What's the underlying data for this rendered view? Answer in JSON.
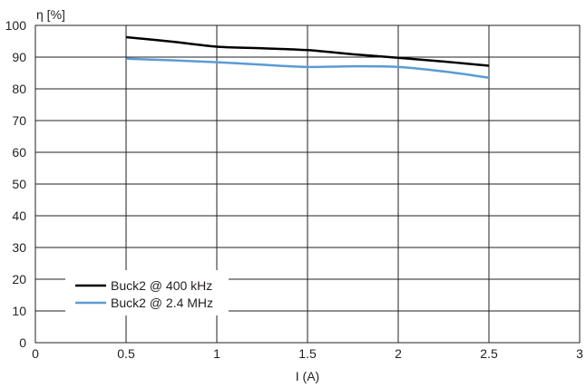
{
  "chart_data": {
    "type": "line",
    "title": "",
    "xlabel": "I (A)",
    "ylabel": "η [%]",
    "xlim": [
      0,
      3
    ],
    "ylim": [
      0,
      100
    ],
    "xticks": [
      0,
      0.5,
      1,
      1.5,
      2,
      2.5,
      3
    ],
    "xtick_labels": [
      "0",
      "0.5",
      "1",
      "1.5",
      "2",
      "2.5",
      "3"
    ],
    "yticks": [
      0,
      10,
      20,
      30,
      40,
      50,
      60,
      70,
      80,
      90,
      100
    ],
    "ytick_labels": [
      "0",
      "10",
      "20",
      "30",
      "40",
      "50",
      "60",
      "70",
      "80",
      "90",
      "100"
    ],
    "grid": true,
    "legend_position": "bottom-left",
    "series": [
      {
        "name": "Buck2 @ 400 kHz",
        "color": "#000000",
        "x": [
          0.5,
          0.75,
          1.0,
          1.25,
          1.5,
          1.75,
          2.0,
          2.25,
          2.5
        ],
        "y": [
          96.3,
          94.9,
          93.3,
          92.8,
          92.2,
          90.9,
          89.8,
          88.6,
          87.3
        ]
      },
      {
        "name": "Buck2 @ 2.4 MHz",
        "color": "#5b9bd5",
        "x": [
          0.5,
          0.75,
          1.0,
          1.25,
          1.5,
          1.75,
          2.0,
          2.25,
          2.5
        ],
        "y": [
          89.5,
          89.0,
          88.4,
          87.6,
          86.9,
          87.1,
          86.9,
          85.5,
          83.5
        ]
      }
    ]
  }
}
